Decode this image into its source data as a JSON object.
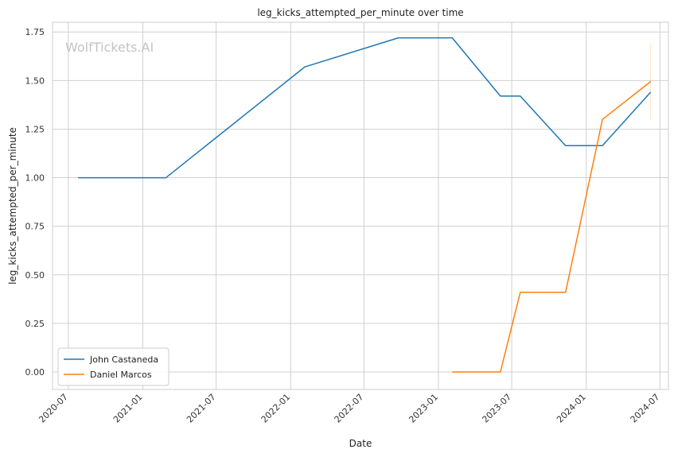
{
  "watermark": "WolfTickets.AI",
  "chart_data": {
    "type": "line",
    "title": "leg_kicks_attempted_per_minute over time",
    "xlabel": "Date",
    "ylabel": "leg_kicks_attempted_per_minute",
    "x_axis_type": "date",
    "xlim": [
      "2020-05-23",
      "2024-07-22"
    ],
    "ylim": [
      -0.09,
      1.8
    ],
    "x_ticks": [
      "2020-07-01",
      "2021-01-01",
      "2021-07-01",
      "2022-01-01",
      "2022-07-01",
      "2023-01-01",
      "2023-07-01",
      "2024-01-01",
      "2024-07-01"
    ],
    "x_tick_labels": [
      "2020-07",
      "2021-01",
      "2021-07",
      "2022-01",
      "2022-07",
      "2023-01",
      "2023-07",
      "2024-01",
      "2024-07"
    ],
    "y_ticks": [
      0.0,
      0.25,
      0.5,
      0.75,
      1.0,
      1.25,
      1.5,
      1.75
    ],
    "y_tick_labels": [
      "0.00",
      "0.25",
      "0.50",
      "0.75",
      "1.00",
      "1.25",
      "1.50",
      "1.75"
    ],
    "grid": true,
    "legend_position": "lower-left",
    "series": [
      {
        "name": "John Castaneda",
        "color": "#1f77b4",
        "points": [
          {
            "x": "2020-07-25",
            "y": 1.0
          },
          {
            "x": "2021-02-27",
            "y": 1.0
          },
          {
            "x": "2022-02-05",
            "y": 1.57
          },
          {
            "x": "2022-09-24",
            "y": 1.72
          },
          {
            "x": "2023-02-04",
            "y": 1.72
          },
          {
            "x": "2023-06-03",
            "y": 1.42
          },
          {
            "x": "2023-07-22",
            "y": 1.42
          },
          {
            "x": "2023-11-11",
            "y": 1.165
          },
          {
            "x": "2024-02-10",
            "y": 1.165
          },
          {
            "x": "2024-06-08",
            "y": 1.44
          }
        ]
      },
      {
        "name": "Daniel Marcos",
        "color": "#ff7f0e",
        "points": [
          {
            "x": "2023-02-04",
            "y": 0.0
          },
          {
            "x": "2023-06-03",
            "y": 0.0
          },
          {
            "x": "2023-07-22",
            "y": 0.41
          },
          {
            "x": "2023-11-11",
            "y": 0.41
          },
          {
            "x": "2024-02-10",
            "y": 1.3
          },
          {
            "x": "2024-06-08",
            "y": 1.495
          }
        ],
        "error_bar": {
          "x": "2024-06-08",
          "low": 1.3,
          "high": 1.69
        }
      }
    ]
  }
}
